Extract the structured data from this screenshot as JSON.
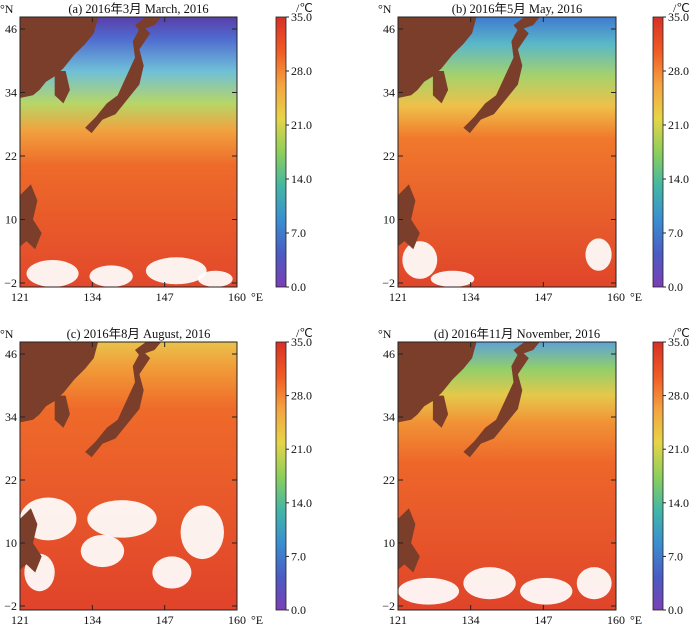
{
  "colorbar": {
    "unit": "/℃",
    "ticks": [
      "35.0",
      "28.0",
      "21.0",
      "14.0",
      "7.0",
      "0.0"
    ],
    "stops": [
      "#d73027",
      "#f05a24",
      "#f4a341",
      "#e7d447",
      "#8dcf5a",
      "#43b7a5",
      "#3a8fd0",
      "#4a5cc4",
      "#7b3fb5"
    ]
  },
  "axes": {
    "lat_unit": "°N",
    "lon_unit": "°E",
    "lat_ticks": [
      "46",
      "34",
      "22",
      "10",
      "−2"
    ],
    "lon_ticks": [
      "121",
      "134",
      "147",
      "160"
    ]
  },
  "colors": {
    "land": "#7a3e2a",
    "cloud": "#ffffff"
  },
  "panels": [
    {
      "id": "a",
      "title": "(a) 2016年3月 March, 2016"
    },
    {
      "id": "b",
      "title": "(b) 2016年5月 May, 2016"
    },
    {
      "id": "c",
      "title": "(c) 2016年8月 August, 2016"
    },
    {
      "id": "d",
      "title": "(d) 2016年11月 November, 2016"
    }
  ]
}
